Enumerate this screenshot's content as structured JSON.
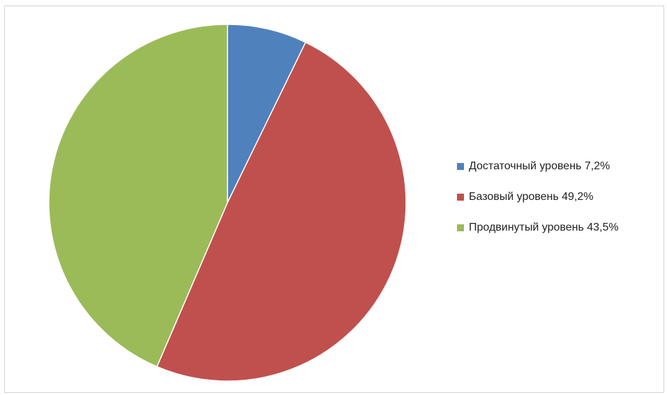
{
  "chart_data": {
    "type": "pie",
    "slices": [
      {
        "label": "Достаточный уровень",
        "value": 7.2,
        "display": "Достаточный уровень  7,2%",
        "color": "#4f81bd"
      },
      {
        "label": "Базовый уровень",
        "value": 49.2,
        "display": "Базовый уровень  49,2%",
        "color": "#c0504d"
      },
      {
        "label": "Продвинутый уровень",
        "value": 43.5,
        "display": "Продвинутый уровень 43,5%",
        "color": "#9bbb59"
      }
    ],
    "legend_position": "right",
    "start_angle": "12 o'clock, clockwise"
  }
}
